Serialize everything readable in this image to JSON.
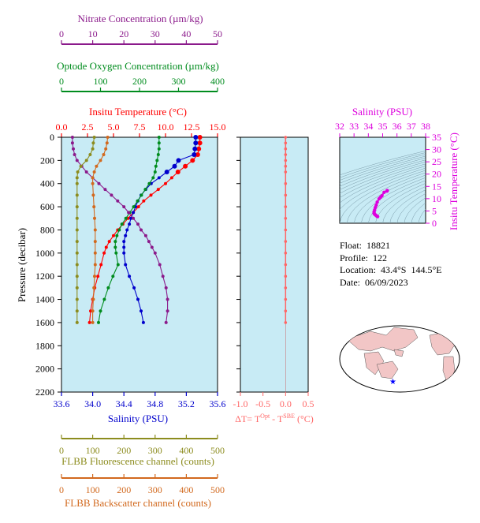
{
  "colors": {
    "temperature": "#ff0000",
    "salinity": "#0000cc",
    "oxygen": "#008c1e",
    "nitrate": "#8b1a8b",
    "fluorescence": "#8c8c1e",
    "backscatter": "#d2691e",
    "delta_t": "#ff6666",
    "ts": "#dd00dd",
    "panel_bg": "#c8ebf5"
  },
  "info": {
    "float": "Float:  18821",
    "profile": "Profile:  122",
    "location": "Location:  43.4°S  144.5°E",
    "date": "Date:  06/09/2023"
  },
  "chart_data": [
    {
      "type": "line",
      "panel": "profiles",
      "ylabel": "Pressure (decibar)",
      "ylim": [
        2200,
        0
      ],
      "yticks": [
        "0",
        "200",
        "400",
        "600",
        "800",
        "1000",
        "1200",
        "1400",
        "1600",
        "1800",
        "2000",
        "2200"
      ],
      "axes": {
        "nitrate": {
          "label": "Nitrate Concentration (µm/kg)",
          "lim": [
            0,
            50
          ],
          "ticks": [
            "0",
            "10",
            "20",
            "30",
            "40",
            "50"
          ],
          "position": "top"
        },
        "oxygen": {
          "label": "Optode Oxygen Concentration (µm/kg)",
          "lim": [
            0,
            400
          ],
          "ticks": [
            "0",
            "100",
            "200",
            "300",
            "400"
          ],
          "position": "top"
        },
        "temperature": {
          "label": "Insitu Temperature (°C)",
          "lim": [
            0,
            15
          ],
          "ticks": [
            "0.0",
            "2.5",
            "5.0",
            "7.5",
            "10.0",
            "12.5",
            "15.0"
          ],
          "position": "top"
        },
        "salinity": {
          "label": "Salinity (PSU)",
          "lim": [
            33.6,
            35.6
          ],
          "ticks": [
            "33.6",
            "34.0",
            "34.4",
            "34.8",
            "35.2",
            "35.6"
          ],
          "position": "bottom"
        },
        "fluorescence": {
          "label": "FLBB Fluorescence channel (counts)",
          "lim": [
            0,
            500
          ],
          "ticks": [
            "0",
            "100",
            "200",
            "300",
            "400",
            "500"
          ],
          "position": "bottom"
        },
        "backscatter": {
          "label": "FLBB Backscatter channel (counts)",
          "lim": [
            0,
            500
          ],
          "ticks": [
            "0",
            "100",
            "200",
            "300",
            "400",
            "500"
          ],
          "position": "bottom"
        }
      },
      "series": [
        {
          "key": "temperature",
          "points": [
            [
              13.3,
              0
            ],
            [
              13.3,
              50
            ],
            [
              13.2,
              100
            ],
            [
              13.1,
              150
            ],
            [
              12.6,
              200
            ],
            [
              11.9,
              250
            ],
            [
              11.2,
              300
            ],
            [
              10.6,
              350
            ],
            [
              10.0,
              400
            ],
            [
              9.3,
              450
            ],
            [
              8.6,
              500
            ],
            [
              7.9,
              550
            ],
            [
              7.4,
              600
            ],
            [
              6.9,
              650
            ],
            [
              6.4,
              700
            ],
            [
              5.9,
              750
            ],
            [
              5.4,
              800
            ],
            [
              5.0,
              850
            ],
            [
              4.6,
              900
            ],
            [
              4.3,
              950
            ],
            [
              4.1,
              1000
            ],
            [
              3.8,
              1100
            ],
            [
              3.5,
              1200
            ],
            [
              3.2,
              1300
            ],
            [
              3.0,
              1400
            ],
            [
              2.8,
              1500
            ],
            [
              2.7,
              1600
            ]
          ]
        },
        {
          "key": "salinity",
          "points": [
            [
              35.32,
              0
            ],
            [
              35.32,
              50
            ],
            [
              35.31,
              100
            ],
            [
              35.3,
              150
            ],
            [
              35.1,
              200
            ],
            [
              35.05,
              250
            ],
            [
              34.95,
              300
            ],
            [
              34.85,
              350
            ],
            [
              34.75,
              400
            ],
            [
              34.68,
              450
            ],
            [
              34.62,
              500
            ],
            [
              34.58,
              550
            ],
            [
              34.55,
              600
            ],
            [
              34.52,
              650
            ],
            [
              34.49,
              700
            ],
            [
              34.47,
              750
            ],
            [
              34.44,
              800
            ],
            [
              34.42,
              850
            ],
            [
              34.4,
              900
            ],
            [
              34.4,
              950
            ],
            [
              34.4,
              1000
            ],
            [
              34.42,
              1100
            ],
            [
              34.47,
              1200
            ],
            [
              34.53,
              1300
            ],
            [
              34.58,
              1400
            ],
            [
              34.62,
              1500
            ],
            [
              34.65,
              1600
            ]
          ]
        },
        {
          "key": "oxygen",
          "points": [
            [
              250,
              0
            ],
            [
              250,
              50
            ],
            [
              250,
              100
            ],
            [
              248,
              150
            ],
            [
              245,
              200
            ],
            [
              242,
              250
            ],
            [
              240,
              300
            ],
            [
              235,
              350
            ],
            [
              225,
              400
            ],
            [
              215,
              450
            ],
            [
              205,
              500
            ],
            [
              195,
              550
            ],
            [
              185,
              600
            ],
            [
              175,
              650
            ],
            [
              165,
              700
            ],
            [
              155,
              750
            ],
            [
              148,
              800
            ],
            [
              142,
              850
            ],
            [
              138,
              900
            ],
            [
              138,
              950
            ],
            [
              140,
              1000
            ],
            [
              145,
              1100
            ],
            [
              132,
              1200
            ],
            [
              120,
              1300
            ],
            [
              110,
              1400
            ],
            [
              100,
              1500
            ],
            [
              95,
              1600
            ]
          ]
        },
        {
          "key": "nitrate",
          "points": [
            [
              3.5,
              0
            ],
            [
              3.5,
              50
            ],
            [
              3.8,
              100
            ],
            [
              4.2,
              150
            ],
            [
              5.0,
              200
            ],
            [
              6.5,
              250
            ],
            [
              8.0,
              300
            ],
            [
              10.0,
              350
            ],
            [
              12.0,
              400
            ],
            [
              14.0,
              450
            ],
            [
              16.0,
              500
            ],
            [
              18.0,
              550
            ],
            [
              20.0,
              600
            ],
            [
              21.5,
              650
            ],
            [
              23.0,
              700
            ],
            [
              24.5,
              750
            ],
            [
              25.5,
              800
            ],
            [
              27.0,
              850
            ],
            [
              28.0,
              900
            ],
            [
              29.0,
              950
            ],
            [
              30.0,
              1000
            ],
            [
              31.5,
              1100
            ],
            [
              32.5,
              1200
            ],
            [
              33.5,
              1300
            ],
            [
              34.0,
              1400
            ],
            [
              34.0,
              1500
            ],
            [
              33.5,
              1600
            ]
          ]
        },
        {
          "key": "fluorescence",
          "points": [
            [
              105,
              0
            ],
            [
              102,
              50
            ],
            [
              100,
              100
            ],
            [
              92,
              150
            ],
            [
              80,
              200
            ],
            [
              62,
              250
            ],
            [
              52,
              300
            ],
            [
              50,
              350
            ],
            [
              50,
              400
            ],
            [
              50,
              500
            ],
            [
              50,
              600
            ],
            [
              50,
              700
            ],
            [
              50,
              800
            ],
            [
              50,
              900
            ],
            [
              50,
              1000
            ],
            [
              50,
              1100
            ],
            [
              50,
              1200
            ],
            [
              50,
              1300
            ],
            [
              50,
              1400
            ],
            [
              50,
              1500
            ],
            [
              50,
              1600
            ]
          ]
        },
        {
          "key": "backscatter",
          "points": [
            [
              148,
              0
            ],
            [
              146,
              50
            ],
            [
              142,
              100
            ],
            [
              135,
              150
            ],
            [
              125,
              200
            ],
            [
              112,
              250
            ],
            [
              105,
              300
            ],
            [
              100,
              350
            ],
            [
              100,
              400
            ],
            [
              102,
              500
            ],
            [
              104,
              600
            ],
            [
              106,
              700
            ],
            [
              108,
              800
            ],
            [
              108,
              900
            ],
            [
              108,
              1000
            ],
            [
              108,
              1100
            ],
            [
              106,
              1200
            ],
            [
              104,
              1300
            ],
            [
              102,
              1400
            ],
            [
              100,
              1500
            ],
            [
              100,
              1600
            ]
          ]
        }
      ]
    },
    {
      "type": "line",
      "panel": "delta_t",
      "xlabel": "ΔT= T^Opt - T^SBE (°C)",
      "xlim": [
        -1.0,
        0.5
      ],
      "xticks": [
        "-1.0",
        "-0.5",
        "0.0",
        "0.5"
      ],
      "ylim": [
        2200,
        0
      ],
      "series": [
        {
          "key": "delta_t",
          "points": [
            [
              0.0,
              0
            ],
            [
              0.0,
              50
            ],
            [
              0.0,
              100
            ],
            [
              0.0,
              150
            ],
            [
              0.0,
              200
            ],
            [
              0.0,
              250
            ],
            [
              0.0,
              300
            ],
            [
              0.0,
              400
            ],
            [
              0.0,
              500
            ],
            [
              0.0,
              600
            ],
            [
              0.0,
              700
            ],
            [
              0.0,
              800
            ],
            [
              0.0,
              900
            ],
            [
              0.0,
              1000
            ],
            [
              0.0,
              1100
            ],
            [
              0.0,
              1200
            ],
            [
              0.0,
              1300
            ],
            [
              0.0,
              1400
            ],
            [
              0.0,
              1500
            ],
            [
              0.0,
              1600
            ]
          ]
        }
      ]
    },
    {
      "type": "scatter",
      "panel": "ts_diagram",
      "xlabel": "Salinity (PSU)",
      "ylabel": "Insitu Temperature (°C)",
      "xlim": [
        32,
        38
      ],
      "ylim": [
        0,
        35
      ],
      "xticks": [
        "32",
        "33",
        "34",
        "35",
        "36",
        "37",
        "38"
      ],
      "yticks": [
        "0",
        "5",
        "10",
        "15",
        "20",
        "25",
        "30",
        "35"
      ],
      "series": [
        {
          "key": "ts",
          "points": [
            [
              35.32,
              13.3
            ],
            [
              35.31,
              13.2
            ],
            [
              35.3,
              13.1
            ],
            [
              35.1,
              12.6
            ],
            [
              34.95,
              11.2
            ],
            [
              34.85,
              10.6
            ],
            [
              34.75,
              10.0
            ],
            [
              34.62,
              8.6
            ],
            [
              34.55,
              7.4
            ],
            [
              34.49,
              6.4
            ],
            [
              34.44,
              5.4
            ],
            [
              34.4,
              4.6
            ],
            [
              34.4,
              4.1
            ],
            [
              34.42,
              3.8
            ],
            [
              34.47,
              3.5
            ],
            [
              34.53,
              3.2
            ],
            [
              34.58,
              3.0
            ],
            [
              34.62,
              2.8
            ],
            [
              34.65,
              2.7
            ]
          ]
        }
      ]
    }
  ]
}
